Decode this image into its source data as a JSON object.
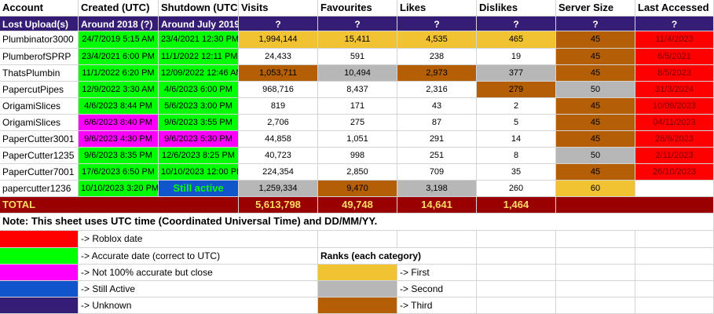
{
  "colors": {
    "roblox": "#ff0000",
    "accurate": "#00ff00",
    "close": "#ff00ff",
    "active": "#1155cc",
    "unknown": "#351c75",
    "gold": "#f1c232",
    "silver": "#b7b7b7",
    "bronze": "#b45f06",
    "total_bg": "#990000",
    "total_fg": "#ffd966",
    "still_active_fg": "#00ff00",
    "white": "#ffffff"
  },
  "columns": [
    "Account",
    "Created (UTC)",
    "Shutdown (UTC",
    "Visits",
    "Favourites",
    "Likes",
    "Dislikes",
    "Server Size",
    "Last Accessed"
  ],
  "unknown_row": [
    "Lost Upload(s)",
    "Around 2018 (?)",
    "Around July 2019",
    "?",
    "?",
    "?",
    "?",
    "?",
    "?"
  ],
  "rows": [
    {
      "cells": [
        "Plumbinator3000",
        "24/7/2019 5:15 AM",
        "23/4/2021 12:30 PM",
        "1,994,144",
        "15,411",
        "4,535",
        "465",
        "45",
        "11/4/2023"
      ],
      "colors": [
        "white",
        "accurate",
        "accurate",
        "gold",
        "gold",
        "gold",
        "gold",
        "bronze",
        "roblox"
      ]
    },
    {
      "cells": [
        "PlumberofSPRP",
        "23/4/2021 6:00 PM",
        "11/1/2022 12:11 PM",
        "24,433",
        "591",
        "238",
        "19",
        "45",
        "6/5/2021"
      ],
      "colors": [
        "white",
        "accurate",
        "accurate",
        "white",
        "white",
        "white",
        "white",
        "bronze",
        "roblox"
      ]
    },
    {
      "cells": [
        "ThatsPlumbin",
        "11/1/2022 6:20 PM",
        "12/09/2022 12:46 AM",
        "1,053,711",
        "10,494",
        "2,973",
        "377",
        "45",
        "8/5/2023"
      ],
      "colors": [
        "white",
        "accurate",
        "accurate",
        "bronze",
        "silver",
        "bronze",
        "silver",
        "bronze",
        "roblox"
      ]
    },
    {
      "cells": [
        "PapercutPipes",
        "12/9/2022 3:30 AM",
        "4/6/2023 6:00 PM",
        "968,716",
        "8,437",
        "2,316",
        "279",
        "50",
        "31/3/2024"
      ],
      "colors": [
        "white",
        "accurate",
        "accurate",
        "white",
        "white",
        "white",
        "bronze",
        "silver",
        "roblox"
      ]
    },
    {
      "cells": [
        "OrigamiSlices",
        "4/6/2023 8:44 PM",
        "5/6/2023 3:00 PM",
        "819",
        "171",
        "43",
        "2",
        "45",
        "10/09/2023"
      ],
      "colors": [
        "white",
        "accurate",
        "accurate",
        "white",
        "white",
        "white",
        "white",
        "bronze",
        "roblox"
      ]
    },
    {
      "cells": [
        "OrigamiSlices",
        "6/6/2023 8:40 PM",
        "9/6/2023 3:55 PM",
        "2,706",
        "275",
        "87",
        "5",
        "45",
        "04/11/2023"
      ],
      "colors": [
        "white",
        "close",
        "accurate",
        "white",
        "white",
        "white",
        "white",
        "bronze",
        "roblox"
      ]
    },
    {
      "cells": [
        "PaperCutter3001",
        "9/6/2023 4:30 PM",
        "9/6/2023 5:30 PM",
        "44,858",
        "1,051",
        "291",
        "14",
        "45",
        "28/9/2023"
      ],
      "colors": [
        "white",
        "close",
        "close",
        "white",
        "white",
        "white",
        "white",
        "bronze",
        "roblox"
      ]
    },
    {
      "cells": [
        "PaperCutter1235",
        "9/6/2023 8:35 PM",
        "12/6/2023 8:25 PM",
        "40,723",
        "998",
        "251",
        "8",
        "50",
        "2/11/2023"
      ],
      "colors": [
        "white",
        "accurate",
        "accurate",
        "white",
        "white",
        "white",
        "white",
        "silver",
        "roblox"
      ]
    },
    {
      "cells": [
        "PaperCutter7001",
        "17/6/2023 6:50 PM",
        "10/10/2023 12:00 PM",
        "224,354",
        "2,850",
        "709",
        "35",
        "45",
        "26/10/2023"
      ],
      "colors": [
        "white",
        "accurate",
        "accurate",
        "white",
        "white",
        "white",
        "white",
        "bronze",
        "roblox"
      ]
    },
    {
      "cells": [
        "papercutter1236",
        "10/10/2023 3:20 PM",
        "Still active",
        "1,259,334",
        "9,470",
        "3,198",
        "260",
        "60",
        ""
      ],
      "colors": [
        "white",
        "accurate",
        "active",
        "silver",
        "bronze",
        "silver",
        "white",
        "gold",
        "white"
      ]
    }
  ],
  "total": {
    "label": "TOTAL",
    "visits": "5,613,798",
    "favourites": "49,748",
    "likes": "14,641",
    "dislikes": "1,464"
  },
  "note": "Note: This sheet uses UTC time (Coordinated Universal Time) and DD/MM/YY.",
  "legend": [
    {
      "color": "roblox",
      "label": "-> Roblox date"
    },
    {
      "color": "accurate",
      "label": "-> Accurate date (correct to UTC)"
    },
    {
      "color": "close",
      "label": "-> Not 100% accurate but close"
    },
    {
      "color": "active",
      "label": "-> Still Active"
    },
    {
      "color": "unknown",
      "label": "-> Unknown"
    }
  ],
  "ranks": {
    "title": "Ranks (each category)",
    "items": [
      {
        "color": "gold",
        "label": "-> First"
      },
      {
        "color": "silver",
        "label": "-> Second"
      },
      {
        "color": "bronze",
        "label": "-> Third"
      }
    ]
  }
}
